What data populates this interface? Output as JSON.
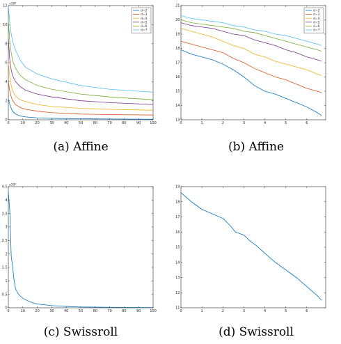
{
  "palette": [
    "#0072bd",
    "#d95319",
    "#edb120",
    "#7e2f8e",
    "#77ac30",
    "#4dbeee"
  ],
  "chart_data": [
    {
      "id": "a",
      "type": "line",
      "caption": "(a) Affine",
      "xlim": [
        0,
        100
      ],
      "ylim": [
        0,
        12
      ],
      "y_exponent": "x10⁶",
      "x_ticks": [
        "0",
        "10",
        "20",
        "30",
        "40",
        "50",
        "60",
        "70",
        "80",
        "90",
        "100"
      ],
      "y_ticks": [
        "0",
        "2",
        "4",
        "6",
        "8",
        "10",
        "12"
      ],
      "legend_position": "top-right",
      "series": [
        {
          "name": "d=2",
          "x": [
            0,
            1,
            2,
            3,
            5,
            8,
            12,
            20,
            30,
            50,
            70,
            100
          ],
          "values": [
            2.2,
            1.6,
            1.2,
            0.9,
            0.6,
            0.4,
            0.3,
            0.2,
            0.15,
            0.1,
            0.08,
            0.05
          ]
        },
        {
          "name": "d=3",
          "x": [
            0,
            1,
            2,
            3,
            5,
            8,
            12,
            20,
            30,
            50,
            70,
            100
          ],
          "values": [
            4.0,
            3.0,
            2.4,
            2.0,
            1.6,
            1.3,
            1.1,
            0.9,
            0.75,
            0.6,
            0.55,
            0.5
          ]
        },
        {
          "name": "d=4",
          "x": [
            0,
            1,
            2,
            3,
            5,
            8,
            12,
            20,
            30,
            50,
            70,
            100
          ],
          "values": [
            6.0,
            4.5,
            3.6,
            3.0,
            2.5,
            2.1,
            1.9,
            1.6,
            1.4,
            1.2,
            1.1,
            1.0
          ]
        },
        {
          "name": "d=5",
          "x": [
            0,
            1,
            2,
            3,
            5,
            8,
            12,
            20,
            30,
            50,
            70,
            100
          ],
          "values": [
            8.5,
            6.3,
            5.2,
            4.6,
            4.0,
            3.5,
            3.1,
            2.7,
            2.4,
            2.0,
            1.8,
            1.6
          ]
        },
        {
          "name": "d=6",
          "x": [
            0,
            1,
            2,
            3,
            5,
            8,
            12,
            20,
            30,
            50,
            70,
            100
          ],
          "values": [
            10.5,
            8.2,
            7.0,
            6.2,
            5.4,
            4.7,
            4.2,
            3.6,
            3.2,
            2.7,
            2.4,
            2.1
          ]
        },
        {
          "name": "d=7",
          "x": [
            0,
            1,
            2,
            3,
            5,
            8,
            12,
            20,
            30,
            50,
            70,
            100
          ],
          "values": [
            12.0,
            10.2,
            9.0,
            8.2,
            7.3,
            6.3,
            5.5,
            4.8,
            4.3,
            3.6,
            3.2,
            2.9
          ]
        }
      ]
    },
    {
      "id": "b",
      "type": "line",
      "caption": "(b) Affine",
      "xlim": [
        0,
        6.9
      ],
      "ylim": [
        13,
        21
      ],
      "x_ticks": [
        "0",
        "1",
        "2",
        "3",
        "4",
        "5",
        "6"
      ],
      "y_ticks": [
        "13",
        "14",
        "15",
        "16",
        "17",
        "18",
        "19",
        "20",
        "21"
      ],
      "legend_position": "top-right",
      "series": [
        {
          "name": "d=2",
          "x": [
            0,
            0.5,
            1,
            1.5,
            2,
            2.5,
            3,
            3.5,
            4,
            4.5,
            5,
            5.5,
            6,
            6.5,
            6.7
          ],
          "values": [
            17.9,
            17.6,
            17.4,
            17.2,
            16.9,
            16.5,
            16.0,
            15.4,
            15.0,
            14.8,
            14.5,
            14.2,
            13.9,
            13.5,
            13.3
          ]
        },
        {
          "name": "d=3",
          "x": [
            0,
            0.5,
            1,
            1.5,
            2,
            2.5,
            3,
            3.5,
            4,
            4.5,
            5,
            5.5,
            6,
            6.5,
            6.7
          ],
          "values": [
            18.5,
            18.3,
            18.1,
            17.9,
            17.7,
            17.3,
            17.0,
            16.6,
            16.3,
            16.0,
            15.8,
            15.5,
            15.2,
            15.0,
            14.9
          ]
        },
        {
          "name": "d=4",
          "x": [
            0,
            0.5,
            1,
            1.5,
            2,
            2.5,
            3,
            3.5,
            4,
            4.5,
            5,
            5.5,
            6,
            6.5,
            6.7
          ],
          "values": [
            19.4,
            19.2,
            19.0,
            18.8,
            18.5,
            18.2,
            18.0,
            17.6,
            17.4,
            17.1,
            16.9,
            16.7,
            16.5,
            16.2,
            16.1
          ]
        },
        {
          "name": "d=5",
          "x": [
            0,
            0.5,
            1,
            1.5,
            2,
            2.5,
            3,
            3.5,
            4,
            4.5,
            5,
            5.5,
            6,
            6.5,
            6.7
          ],
          "values": [
            19.8,
            19.6,
            19.5,
            19.4,
            19.2,
            19.0,
            18.9,
            18.6,
            18.4,
            18.2,
            17.9,
            17.7,
            17.4,
            17.2,
            17.1
          ]
        },
        {
          "name": "d=6",
          "x": [
            0,
            0.5,
            1,
            1.5,
            2,
            2.5,
            3,
            3.5,
            4,
            4.5,
            5,
            5.5,
            6,
            6.5,
            6.7
          ],
          "values": [
            20.0,
            19.8,
            19.7,
            19.6,
            19.5,
            19.4,
            19.2,
            19.1,
            18.9,
            18.7,
            18.5,
            18.3,
            18.1,
            17.9,
            17.8
          ]
        },
        {
          "name": "d=7",
          "x": [
            0,
            0.5,
            1,
            1.5,
            2,
            2.5,
            3,
            3.5,
            4,
            4.5,
            5,
            5.5,
            6,
            6.5,
            6.7
          ],
          "values": [
            20.3,
            20.1,
            20.0,
            19.9,
            19.8,
            19.6,
            19.5,
            19.3,
            19.2,
            19.0,
            18.9,
            18.7,
            18.5,
            18.3,
            18.2
          ]
        }
      ]
    },
    {
      "id": "c",
      "type": "line",
      "caption": "(c) Swissroll",
      "xlim": [
        0,
        100
      ],
      "ylim": [
        0,
        4.5
      ],
      "y_exponent": "x10⁶",
      "x_ticks": [
        "0",
        "10",
        "20",
        "30",
        "40",
        "50",
        "60",
        "70",
        "80",
        "90",
        "100"
      ],
      "y_ticks": [
        "0",
        "0.5",
        "1",
        "1.5",
        "2",
        "2.5",
        "3",
        "3.5",
        "4",
        "4.5"
      ],
      "series": [
        {
          "x": [
            0,
            1,
            2,
            3,
            4,
            5,
            7,
            10,
            15,
            20,
            30,
            40,
            50,
            70,
            100
          ],
          "values": [
            4.3,
            3.6,
            1.9,
            1.5,
            1.0,
            0.7,
            0.5,
            0.35,
            0.22,
            0.14,
            0.08,
            0.05,
            0.03,
            0.02,
            0.01
          ]
        }
      ]
    },
    {
      "id": "d",
      "type": "line",
      "caption": "(d) Swissroll",
      "xlim": [
        0,
        6.9
      ],
      "ylim": [
        11,
        19
      ],
      "x_ticks": [
        "0",
        "1",
        "2",
        "3",
        "4",
        "5",
        "6"
      ],
      "y_ticks": [
        "11",
        "12",
        "13",
        "14",
        "15",
        "16",
        "17",
        "18",
        "19"
      ],
      "series": [
        {
          "x": [
            0,
            0.5,
            1,
            1.5,
            2,
            2.3,
            2.6,
            3,
            3.3,
            3.6,
            4,
            4.5,
            5,
            5.5,
            6,
            6.5,
            6.7
          ],
          "values": [
            18.6,
            18.0,
            17.5,
            17.2,
            16.9,
            16.5,
            16.0,
            15.8,
            15.4,
            15.1,
            14.6,
            14.0,
            13.5,
            13.0,
            12.4,
            11.8,
            11.5
          ]
        }
      ]
    }
  ]
}
